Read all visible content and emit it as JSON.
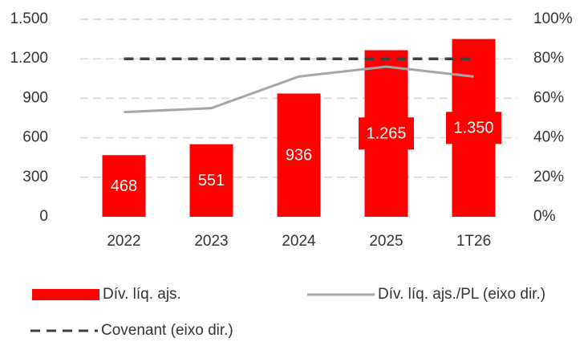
{
  "chart_data": {
    "type": "bar",
    "categories": [
      "2022",
      "2023",
      "2024",
      "2025",
      "1T26"
    ],
    "series": [
      {
        "name": "Dív. líq. ajs.",
        "color": "#ff0000",
        "type": "bar",
        "values": [
          468,
          551,
          936,
          1265,
          1350
        ],
        "value_labels": [
          "468",
          "551",
          "936",
          "1.265",
          "1.350"
        ]
      },
      {
        "name": "Dív. líq. ajs./PL (eixo dir.)",
        "color": "#a6a6a6",
        "type": "line",
        "axis": "y2",
        "values": [
          53,
          55,
          71,
          76,
          71
        ]
      },
      {
        "name": "Covenant (eixo dir.)",
        "color": "#404040",
        "type": "line",
        "dashed": true,
        "axis": "y2",
        "values": [
          80,
          80,
          80,
          80,
          80
        ]
      }
    ],
    "ylim": [
      0,
      1500
    ],
    "yticks": [
      0,
      300,
      600,
      900,
      {
        "value": 1200,
        "label": "1.200"
      },
      {
        "value": 1500,
        "label": "1.500"
      }
    ],
    "y2lim": [
      0,
      100
    ],
    "y2ticks": [
      {
        "value": 0,
        "label": "0%"
      },
      {
        "value": 20,
        "label": "20%"
      },
      {
        "value": 40,
        "label": "40%"
      },
      {
        "value": 60,
        "label": "60%"
      },
      {
        "value": 80,
        "label": "80%"
      },
      {
        "value": 100,
        "label": "100%"
      }
    ],
    "grid": true
  }
}
